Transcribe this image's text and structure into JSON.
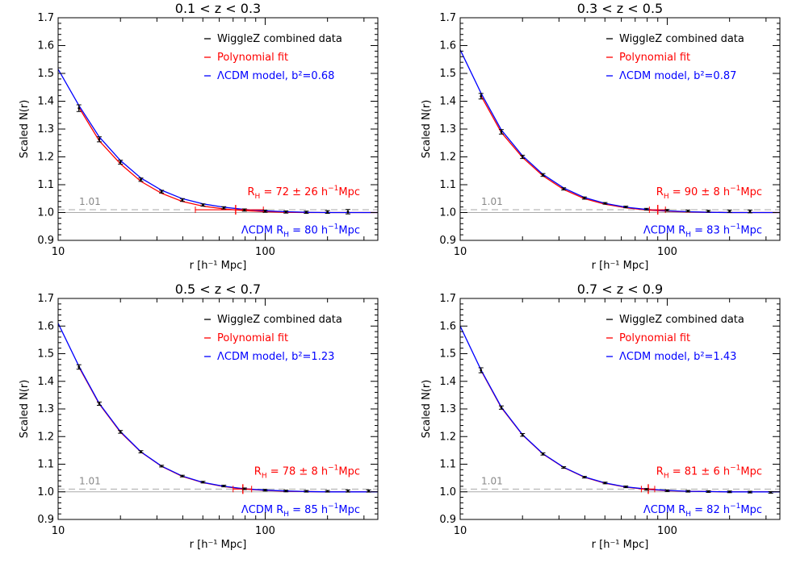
{
  "chart_data": [
    {
      "type": "line",
      "title": "0.1 < z < 0.3",
      "xlabel": "r [h⁻¹ Mpc]",
      "ylabel": "Scaled N(r)",
      "xscale": "log",
      "xlim": [
        10,
        350
      ],
      "ylim": [
        0.9,
        1.7
      ],
      "xticks": [
        10,
        100
      ],
      "yticks": [
        0.9,
        1.0,
        1.1,
        1.2,
        1.3,
        1.4,
        1.5,
        1.6,
        1.7
      ],
      "ytick_labels": [
        "0.9",
        "1.0",
        "1.1",
        "1.2",
        "1.3",
        "1.4",
        "1.5",
        "1.6",
        "1.7"
      ],
      "reference_line": {
        "y": 1.01,
        "label": "1.01",
        "color": "#aaaaaa"
      },
      "unity_line": {
        "y": 1.0,
        "color": "#aaaaaa"
      },
      "legend": {
        "position": "top-right",
        "entries": [
          {
            "label": "WiggleZ combined data",
            "color": "#000000"
          },
          {
            "label": "Polynomial fit",
            "color": "#ff0000"
          },
          {
            "label": "ΛCDM model, b²=0.68",
            "color": "#0000ff"
          }
        ]
      },
      "data": {
        "x": [
          12.6,
          15.8,
          20,
          25.1,
          31.6,
          39.8,
          50.1,
          63.1,
          79.4,
          100,
          126,
          158,
          200,
          251
        ],
        "y": [
          1.375,
          1.263,
          1.181,
          1.118,
          1.075,
          1.045,
          1.027,
          1.017,
          1.009,
          1.005,
          1.002,
          1.001,
          1.002,
          1.003
        ],
        "err": [
          0.012,
          0.009,
          0.007,
          0.006,
          0.005,
          0.005,
          0.004,
          0.004,
          0.004,
          0.004,
          0.004,
          0.004,
          0.005,
          0.008
        ]
      },
      "fit": {
        "color": "#ff0000",
        "x": [
          12.6,
          15.8,
          20,
          25.1,
          31.6,
          39.8,
          50.1,
          63.1,
          79.4,
          100,
          126,
          158,
          200,
          251,
          350
        ],
        "y": [
          1.378,
          1.258,
          1.175,
          1.112,
          1.069,
          1.04,
          1.023,
          1.013,
          1.007,
          1.003,
          1.001,
          1.0,
          1.0,
          1.0,
          1.0
        ]
      },
      "model": {
        "color": "#0000ff",
        "x": [
          10,
          12.6,
          15.8,
          20,
          25.1,
          31.6,
          39.8,
          50.1,
          63.1,
          79.4,
          100,
          126,
          158,
          200,
          251,
          350
        ],
        "y": [
          1.515,
          1.385,
          1.272,
          1.187,
          1.124,
          1.08,
          1.05,
          1.031,
          1.019,
          1.011,
          1.006,
          1.003,
          1.001,
          1.0,
          1.0,
          1.0
        ]
      },
      "rh_marker": {
        "x": 72,
        "xlo": 46,
        "xhi": 98,
        "color": "#ff0000"
      },
      "annotation_fit": {
        "prefix": "R",
        "sub": "H",
        "text": " = 72 ± 26 h",
        "sup": "−1",
        "suffix": "Mpc",
        "color": "#ff0000"
      },
      "annotation_model": {
        "prefix": "ΛCDM R",
        "sub": "H",
        "text": " = 80 h",
        "sup": "−1",
        "suffix": "Mpc",
        "color": "#0000ff"
      }
    },
    {
      "type": "line",
      "title": "0.3 < z < 0.5",
      "xlabel": "r [h⁻¹ Mpc]",
      "ylabel": "Scaled N(r)",
      "xscale": "log",
      "xlim": [
        10,
        350
      ],
      "ylim": [
        0.9,
        1.7
      ],
      "xticks": [
        10,
        100
      ],
      "yticks": [
        0.9,
        1.0,
        1.1,
        1.2,
        1.3,
        1.4,
        1.5,
        1.6,
        1.7
      ],
      "ytick_labels": [
        "0.9",
        "1.0",
        "1.1",
        "1.2",
        "1.3",
        "1.4",
        "1.5",
        "1.6",
        "1.7"
      ],
      "reference_line": {
        "y": 1.01,
        "label": "1.01",
        "color": "#aaaaaa"
      },
      "unity_line": {
        "y": 1.0,
        "color": "#aaaaaa"
      },
      "legend": {
        "position": "top-right",
        "entries": [
          {
            "label": "WiggleZ combined data",
            "color": "#000000"
          },
          {
            "label": "Polynomial fit",
            "color": "#ff0000"
          },
          {
            "label": "ΛCDM model, b²=0.87",
            "color": "#0000ff"
          }
        ]
      },
      "data": {
        "x": [
          12.6,
          15.8,
          20,
          25.1,
          31.6,
          39.8,
          50.1,
          63.1,
          79.4,
          100,
          126,
          158,
          200,
          251
        ],
        "y": [
          1.418,
          1.29,
          1.2,
          1.135,
          1.085,
          1.052,
          1.033,
          1.02,
          1.012,
          1.008,
          1.006,
          1.005,
          1.005,
          1.004
        ],
        "err": [
          0.01,
          0.008,
          0.006,
          0.005,
          0.004,
          0.004,
          0.003,
          0.003,
          0.003,
          0.003,
          0.003,
          0.003,
          0.004,
          0.005
        ]
      },
      "fit": {
        "color": "#ff0000",
        "x": [
          12.6,
          15.8,
          20,
          25.1,
          31.6,
          39.8,
          50.1,
          63.1,
          79.4,
          100,
          126,
          158,
          200,
          251,
          350
        ],
        "y": [
          1.42,
          1.288,
          1.198,
          1.132,
          1.083,
          1.05,
          1.03,
          1.017,
          1.009,
          1.005,
          1.002,
          1.001,
          1.0,
          1.0,
          1.0
        ]
      },
      "model": {
        "color": "#0000ff",
        "x": [
          10,
          12.6,
          15.8,
          20,
          25.1,
          31.6,
          39.8,
          50.1,
          63.1,
          79.4,
          100,
          126,
          158,
          200,
          251,
          350
        ],
        "y": [
          1.585,
          1.43,
          1.297,
          1.204,
          1.137,
          1.088,
          1.054,
          1.033,
          1.019,
          1.011,
          1.006,
          1.003,
          1.001,
          1.0,
          1.0,
          1.0
        ]
      },
      "rh_marker": {
        "x": 90,
        "xlo": 82,
        "xhi": 98,
        "color": "#ff0000"
      },
      "annotation_fit": {
        "prefix": "R",
        "sub": "H",
        "text": " = 90 ± 8 h",
        "sup": "−1",
        "suffix": "Mpc",
        "color": "#ff0000"
      },
      "annotation_model": {
        "prefix": "ΛCDM R",
        "sub": "H",
        "text": " = 83 h",
        "sup": "−1",
        "suffix": "Mpc",
        "color": "#0000ff"
      }
    },
    {
      "type": "line",
      "title": "0.5 < z < 0.7",
      "xlabel": "r [h⁻¹ Mpc]",
      "ylabel": "Scaled N(r)",
      "xscale": "log",
      "xlim": [
        10,
        350
      ],
      "ylim": [
        0.9,
        1.7
      ],
      "xticks": [
        10,
        100
      ],
      "yticks": [
        0.9,
        1.0,
        1.1,
        1.2,
        1.3,
        1.4,
        1.5,
        1.6,
        1.7
      ],
      "ytick_labels": [
        "0.9",
        "1.0",
        "1.1",
        "1.2",
        "1.3",
        "1.4",
        "1.5",
        "1.6",
        "1.7"
      ],
      "reference_line": {
        "y": 1.01,
        "label": "1.01",
        "color": "#aaaaaa"
      },
      "unity_line": {
        "y": 1.0,
        "color": "#aaaaaa"
      },
      "legend": {
        "position": "top-right",
        "entries": [
          {
            "label": "WiggleZ combined data",
            "color": "#000000"
          },
          {
            "label": "Polynomial fit",
            "color": "#ff0000"
          },
          {
            "label": "ΛCDM model, b²=1.23",
            "color": "#0000ff"
          }
        ]
      },
      "data": {
        "x": [
          12.6,
          15.8,
          20,
          25.1,
          31.6,
          39.8,
          50.1,
          63.1,
          79.4,
          100,
          126,
          158,
          200,
          251,
          316
        ],
        "y": [
          1.452,
          1.319,
          1.217,
          1.145,
          1.093,
          1.057,
          1.035,
          1.021,
          1.011,
          1.006,
          1.003,
          1.002,
          1.002,
          1.003,
          1.003
        ],
        "err": [
          0.008,
          0.006,
          0.005,
          0.004,
          0.003,
          0.003,
          0.003,
          0.003,
          0.003,
          0.003,
          0.003,
          0.003,
          0.003,
          0.004,
          0.004
        ]
      },
      "fit": {
        "color": "#ff0000",
        "x": [
          12.6,
          15.8,
          20,
          25.1,
          31.6,
          39.8,
          50.1,
          63.1,
          79.4,
          100,
          126,
          158,
          200,
          251,
          350
        ],
        "y": [
          1.452,
          1.318,
          1.216,
          1.144,
          1.092,
          1.056,
          1.033,
          1.019,
          1.01,
          1.005,
          1.002,
          1.001,
          1.0,
          1.0,
          1.0
        ]
      },
      "model": {
        "color": "#0000ff",
        "x": [
          10,
          12.6,
          15.8,
          20,
          25.1,
          31.6,
          39.8,
          50.1,
          63.1,
          79.4,
          100,
          126,
          158,
          200,
          251,
          350
        ],
        "y": [
          1.61,
          1.455,
          1.32,
          1.218,
          1.145,
          1.093,
          1.057,
          1.034,
          1.02,
          1.011,
          1.006,
          1.003,
          1.001,
          1.0,
          1.0,
          1.0
        ]
      },
      "rh_marker": {
        "x": 78,
        "xlo": 70,
        "xhi": 86,
        "color": "#ff0000"
      },
      "annotation_fit": {
        "prefix": "R",
        "sub": "H",
        "text": " = 78 ± 8 h",
        "sup": "−1",
        "suffix": "Mpc",
        "color": "#ff0000"
      },
      "annotation_model": {
        "prefix": "ΛCDM R",
        "sub": "H",
        "text": " = 85 h",
        "sup": "−1",
        "suffix": "Mpc",
        "color": "#0000ff"
      }
    },
    {
      "type": "line",
      "title": "0.7 < z < 0.9",
      "xlabel": "r [h⁻¹ Mpc]",
      "ylabel": "Scaled N(r)",
      "xscale": "log",
      "xlim": [
        10,
        350
      ],
      "ylim": [
        0.9,
        1.7
      ],
      "xticks": [
        10,
        100
      ],
      "yticks": [
        0.9,
        1.0,
        1.1,
        1.2,
        1.3,
        1.4,
        1.5,
        1.6,
        1.7
      ],
      "ytick_labels": [
        "0.9",
        "1.0",
        "1.1",
        "1.2",
        "1.3",
        "1.4",
        "1.5",
        "1.6",
        "1.7"
      ],
      "reference_line": {
        "y": 1.01,
        "label": "1.01",
        "color": "#aaaaaa"
      },
      "unity_line": {
        "y": 1.0,
        "color": "#aaaaaa"
      },
      "legend": {
        "position": "top-right",
        "entries": [
          {
            "label": "WiggleZ combined data",
            "color": "#000000"
          },
          {
            "label": "Polynomial fit",
            "color": "#ff0000"
          },
          {
            "label": "ΛCDM model, b²=1.43",
            "color": "#0000ff"
          }
        ]
      },
      "data": {
        "x": [
          12.6,
          15.8,
          20,
          25.1,
          31.6,
          39.8,
          50.1,
          63.1,
          79.4,
          100,
          126,
          158,
          200,
          251,
          316
        ],
        "y": [
          1.44,
          1.305,
          1.206,
          1.137,
          1.088,
          1.053,
          1.032,
          1.018,
          1.009,
          1.004,
          1.002,
          1.001,
          1.0,
          0.999,
          0.998
        ],
        "err": [
          0.009,
          0.006,
          0.005,
          0.004,
          0.003,
          0.003,
          0.003,
          0.003,
          0.003,
          0.003,
          0.003,
          0.003,
          0.003,
          0.003,
          0.003
        ]
      },
      "fit": {
        "color": "#ff0000",
        "x": [
          12.6,
          15.8,
          20,
          25.1,
          31.6,
          39.8,
          50.1,
          63.1,
          79.4,
          100,
          126,
          158,
          200,
          251,
          350
        ],
        "y": [
          1.44,
          1.305,
          1.206,
          1.137,
          1.088,
          1.053,
          1.031,
          1.017,
          1.009,
          1.004,
          1.002,
          1.001,
          1.0,
          1.0,
          1.0
        ]
      },
      "model": {
        "color": "#0000ff",
        "x": [
          10,
          12.6,
          15.8,
          20,
          25.1,
          31.6,
          39.8,
          50.1,
          63.1,
          79.4,
          100,
          126,
          158,
          200,
          251,
          350
        ],
        "y": [
          1.6,
          1.442,
          1.307,
          1.207,
          1.138,
          1.089,
          1.054,
          1.032,
          1.018,
          1.01,
          1.005,
          1.002,
          1.001,
          1.0,
          1.0,
          1.0
        ]
      },
      "rh_marker": {
        "x": 81,
        "xlo": 75,
        "xhi": 87,
        "color": "#ff0000"
      },
      "annotation_fit": {
        "prefix": "R",
        "sub": "H",
        "text": " = 81 ± 6 h",
        "sup": "−1",
        "suffix": "Mpc",
        "color": "#ff0000"
      },
      "annotation_model": {
        "prefix": "ΛCDM R",
        "sub": "H",
        "text": " = 82 h",
        "sup": "−1",
        "suffix": "Mpc",
        "color": "#0000ff"
      }
    }
  ]
}
